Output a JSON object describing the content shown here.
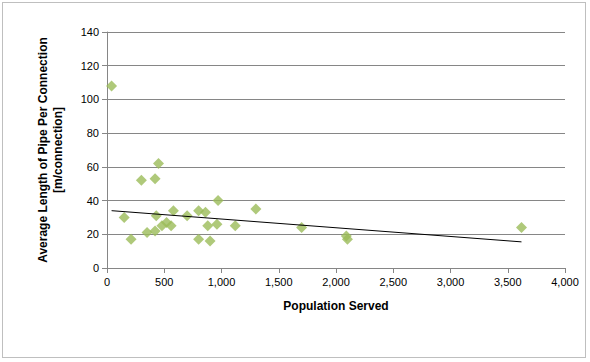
{
  "chart_data": {
    "type": "scatter",
    "xlabel": "Population Served",
    "ylabel": "Average Length of Pipe Per Connection\n[m/connection]",
    "xlim": [
      0,
      4000
    ],
    "xticks": [
      0,
      500,
      1000,
      1500,
      2000,
      2500,
      3000,
      3500,
      4000
    ],
    "ylim": [
      0,
      140
    ],
    "yticks": [
      0,
      20,
      40,
      60,
      80,
      100,
      120,
      140
    ],
    "grid": true,
    "series": [
      {
        "type": "scatter",
        "color": "#9bbb59",
        "marker": "diamond",
        "x": [
          40,
          150,
          210,
          300,
          350,
          420,
          430,
          450,
          420,
          480,
          520,
          560,
          580,
          700,
          800,
          800,
          860,
          880,
          900,
          960,
          970,
          1120,
          1300,
          1700,
          2090,
          2100,
          3620
        ],
        "values": [
          108,
          30,
          17,
          52,
          21,
          53,
          31,
          62,
          22,
          25,
          27,
          25,
          34,
          31,
          34,
          17,
          33,
          25,
          16,
          26,
          40,
          25,
          35,
          24,
          19,
          17,
          24
        ]
      },
      {
        "type": "line",
        "color": "#000000",
        "line_style": "solid",
        "x": [
          40,
          3620
        ],
        "values": [
          34,
          15.5
        ]
      }
    ]
  }
}
